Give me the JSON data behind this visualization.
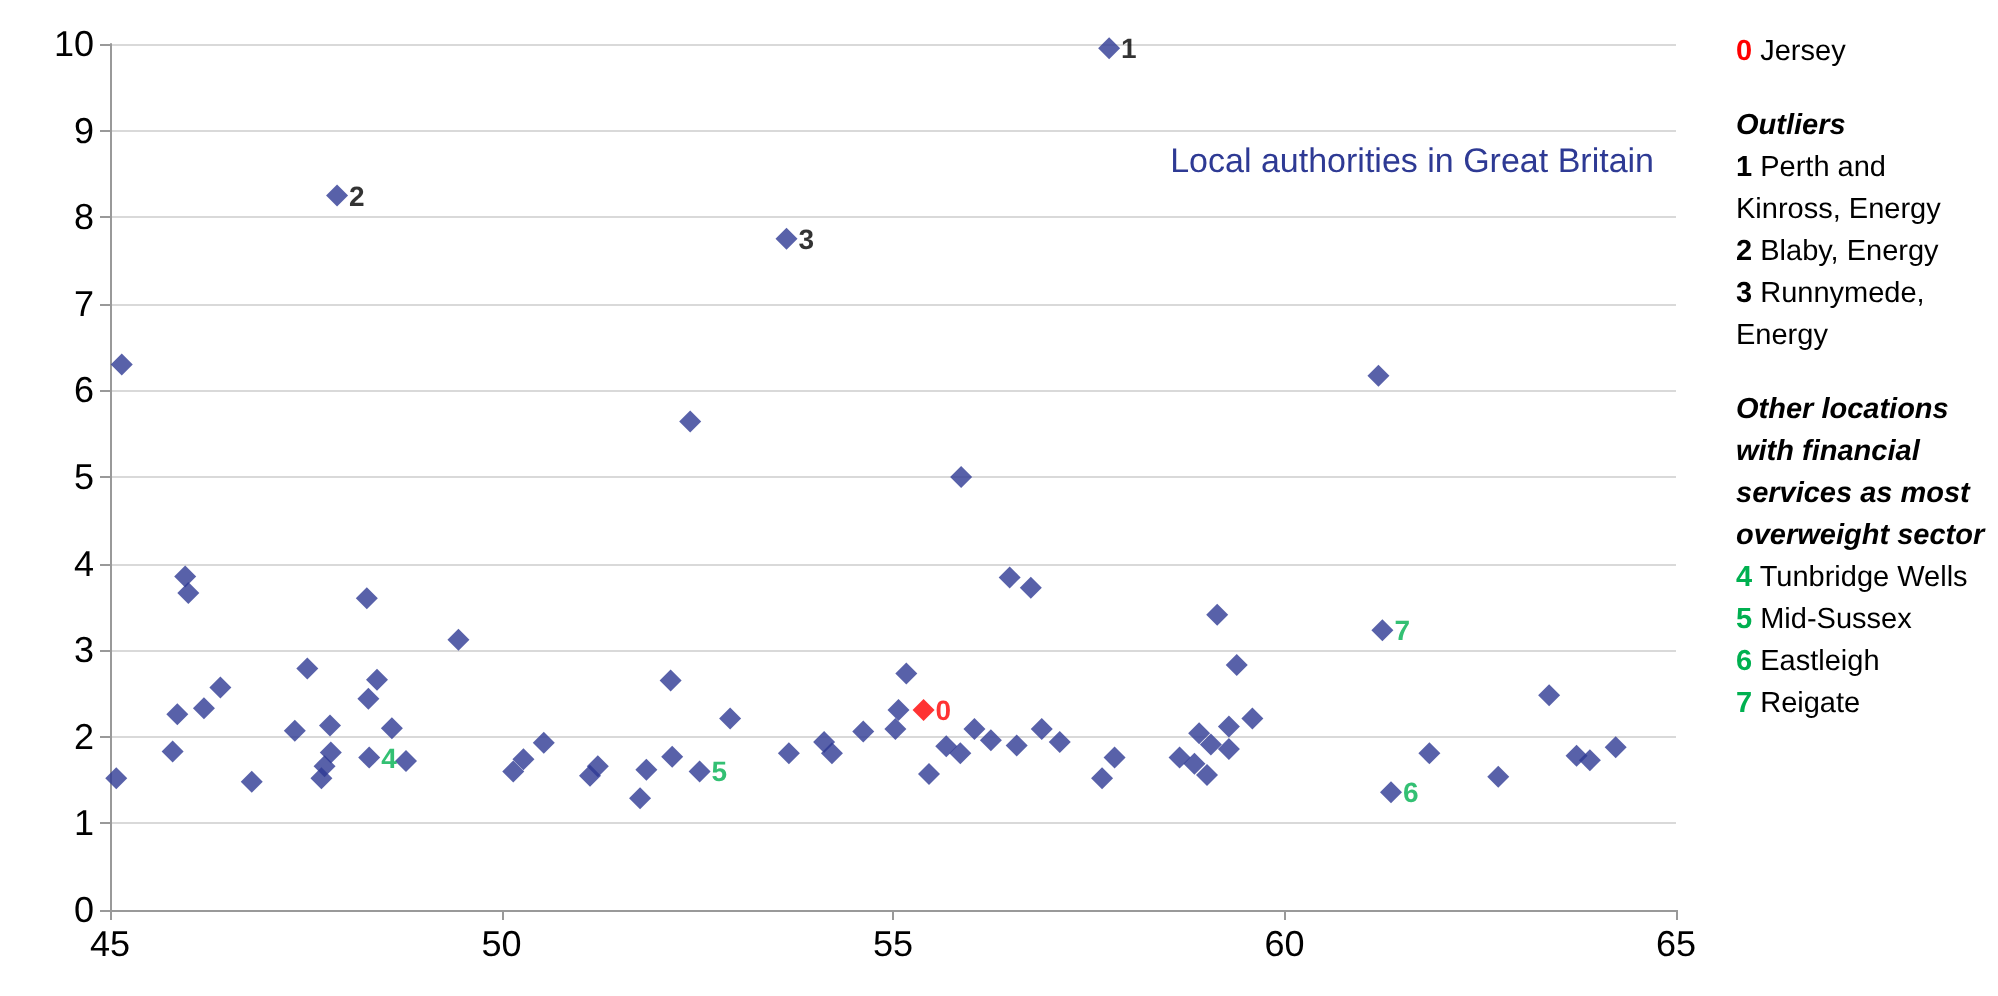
{
  "chart_data": {
    "type": "scatter",
    "marker": "diamond",
    "grid": "y",
    "xlim": [
      45,
      65
    ],
    "xticks": [
      45,
      50,
      55,
      60,
      65
    ],
    "ylim": [
      0,
      10
    ],
    "yticks": [
      0,
      1,
      2,
      3,
      4,
      5,
      6,
      7,
      8,
      9,
      10
    ],
    "annotations": [
      "Local authorities in Great Britain",
      {
        "text": "0",
        "x": 55.39,
        "y": 2.31
      },
      {
        "text": "1",
        "x": 57.76,
        "y": 9.95
      },
      {
        "text": "2",
        "x": 47.9,
        "y": 8.25
      },
      {
        "text": "3",
        "x": 53.64,
        "y": 7.75
      },
      {
        "text": "4",
        "x": 48.31,
        "y": 1.76
      },
      {
        "text": "5",
        "x": 52.53,
        "y": 1.6
      },
      {
        "text": "6",
        "x": 61.36,
        "y": 1.36
      },
      {
        "text": "7",
        "x": 61.25,
        "y": 3.23
      },
      "0 Jersey",
      "Outliers",
      "1 Perth and Kinross, Energy",
      "2 Blaby, Energy",
      "3 Runnymede, Energy",
      "Other locations with financial services as most overweight sector",
      "4 Tunbridge Wells",
      "5 Mid-Sussex",
      "6 Eastleigh",
      "7 Reigate"
    ],
    "series": [
      {
        "color": "#2e3a94",
        "x": [
          45.15,
          45.08,
          45.96,
          46.0,
          45.86,
          45.8,
          46.2,
          46.41,
          46.81,
          47.52,
          47.36,
          47.81,
          47.82,
          47.74,
          47.7,
          48.28,
          48.41,
          48.3,
          48.6,
          48.78,
          49.45,
          50.15,
          50.28,
          50.54,
          51.13,
          51.23,
          51.85,
          51.77,
          52.16,
          52.18,
          52.41,
          52.92,
          53.67,
          54.12,
          54.22,
          54.62,
          55.03,
          55.07,
          55.17,
          55.46,
          55.68,
          55.86,
          55.87,
          56.04,
          56.25,
          56.49,
          56.58,
          56.76,
          56.9,
          57.13,
          57.67,
          57.83,
          58.66,
          58.85,
          58.91,
          61.2,
          59.14,
          59.39,
          59.59,
          59.29,
          59.06,
          59.29,
          59.01,
          61.85,
          62.73,
          63.38,
          63.73,
          63.9,
          64.23
        ],
        "values": [
          6.3,
          1.52,
          3.85,
          3.66,
          2.26,
          1.83,
          2.33,
          2.57,
          1.48,
          2.79,
          2.07,
          2.13,
          1.82,
          1.66,
          1.52,
          3.6,
          2.66,
          2.44,
          2.1,
          1.72,
          3.12,
          1.6,
          1.74,
          1.93,
          1.55,
          1.66,
          1.62,
          1.29,
          2.65,
          1.77,
          5.64,
          2.21,
          1.81,
          1.94,
          1.81,
          2.06,
          2.09,
          2.31,
          2.73,
          1.57,
          1.89,
          1.81,
          5.0,
          2.09,
          1.96,
          3.84,
          1.9,
          3.72,
          2.09,
          1.94,
          1.52,
          1.76,
          1.76,
          1.69,
          2.04,
          6.17,
          3.41,
          2.83,
          2.21,
          2.12,
          1.91,
          1.86,
          1.56,
          1.81,
          1.54,
          2.48,
          1.78,
          1.73,
          1.88
        ]
      },
      {
        "color": "#ff0000",
        "x": [
          55.39
        ],
        "values": [
          2.31
        ]
      },
      {
        "color": "#2e3a94",
        "x": [
          57.76,
          47.9,
          53.64
        ],
        "values": [
          9.95,
          8.25,
          7.75
        ]
      },
      {
        "color": "#2e3a94",
        "x": [
          48.31,
          52.53,
          61.36,
          61.25
        ],
        "values": [
          1.76,
          1.6,
          1.36,
          3.23
        ]
      }
    ]
  }
}
